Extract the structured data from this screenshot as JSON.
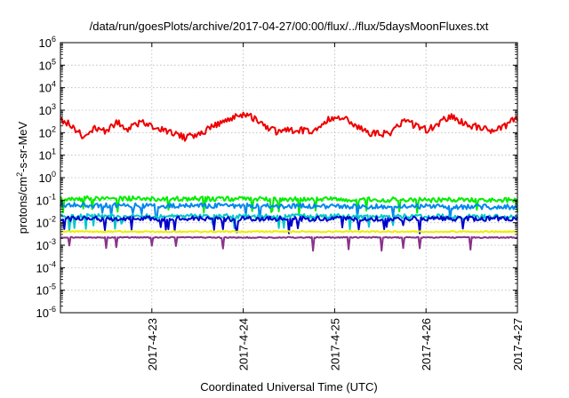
{
  "chart_data": {
    "type": "line",
    "title": "/data/run/goesPlots/archive/2017-04-27/00:00/flux/../flux/5daysMoonFluxes.txt",
    "xlabel": "Coordinated Universal Time (UTC)",
    "ylabel": "protons/cm²-s-sr-MeV",
    "ylabel_parts": {
      "pre": "protons/cm",
      "sup": "2",
      "post": "-s-sr-MeV"
    },
    "y_scale": "log",
    "ylim": [
      1e-06,
      1000000.0
    ],
    "y_ticks": [
      {
        "base": "10",
        "exp": "-6",
        "value": 1e-06
      },
      {
        "base": "10",
        "exp": "-5",
        "value": 1e-05
      },
      {
        "base": "10",
        "exp": "-4",
        "value": 0.0001
      },
      {
        "base": "10",
        "exp": "-3",
        "value": 0.001
      },
      {
        "base": "10",
        "exp": "-2",
        "value": 0.01
      },
      {
        "base": "10",
        "exp": "-1",
        "value": 0.1
      },
      {
        "base": "10",
        "exp": "0",
        "value": 1.0
      },
      {
        "base": "10",
        "exp": "1",
        "value": 10.0
      },
      {
        "base": "10",
        "exp": "2",
        "value": 100.0
      },
      {
        "base": "10",
        "exp": "3",
        "value": 1000.0
      },
      {
        "base": "10",
        "exp": "4",
        "value": 10000.0
      },
      {
        "base": "10",
        "exp": "5",
        "value": 100000.0
      },
      {
        "base": "10",
        "exp": "6",
        "value": 1000000.0
      }
    ],
    "xlim": [
      "2017-04-22T00:00",
      "2017-04-27T00:00"
    ],
    "x_ticks": [
      {
        "label": "2017-4-23",
        "value": "2017-04-23T00:00"
      },
      {
        "label": "2017-4-24",
        "value": "2017-04-24T00:00"
      },
      {
        "label": "2017-4-25",
        "value": "2017-04-25T00:00"
      },
      {
        "label": "2017-4-26",
        "value": "2017-04-26T00:00"
      },
      {
        "label": "2017-4-27",
        "value": "2017-04-27T00:00"
      }
    ],
    "grid": true,
    "series": [
      {
        "color": "#ee0000",
        "x": [
          "2017-04-22T00:00",
          "2017-04-22T03:00",
          "2017-04-22T06:00",
          "2017-04-22T09:00",
          "2017-04-22T12:00",
          "2017-04-22T15:00",
          "2017-04-22T18:00",
          "2017-04-22T21:00",
          "2017-04-23T00:00",
          "2017-04-23T03:00",
          "2017-04-23T06:00",
          "2017-04-23T09:00",
          "2017-04-23T12:00",
          "2017-04-23T15:00",
          "2017-04-23T18:00",
          "2017-04-23T21:00",
          "2017-04-24T00:00",
          "2017-04-24T03:00",
          "2017-04-24T06:00",
          "2017-04-24T09:00",
          "2017-04-24T12:00",
          "2017-04-24T15:00",
          "2017-04-24T18:00",
          "2017-04-24T21:00",
          "2017-04-25T00:00",
          "2017-04-25T03:00",
          "2017-04-25T06:00",
          "2017-04-25T09:00",
          "2017-04-25T12:00",
          "2017-04-25T15:00",
          "2017-04-25T18:00",
          "2017-04-25T21:00",
          "2017-04-26T00:00",
          "2017-04-26T03:00",
          "2017-04-26T06:00",
          "2017-04-26T09:00",
          "2017-04-26T12:00",
          "2017-04-26T15:00",
          "2017-04-26T18:00",
          "2017-04-26T21:00",
          "2017-04-27T00:00"
        ],
        "values": [
          400,
          210,
          60,
          160,
          110,
          300,
          140,
          300,
          180,
          140,
          80,
          60,
          80,
          150,
          250,
          400,
          650,
          420,
          180,
          110,
          120,
          140,
          90,
          250,
          550,
          400,
          180,
          100,
          90,
          110,
          350,
          220,
          130,
          240,
          520,
          350,
          200,
          150,
          130,
          220,
          450
        ]
      },
      {
        "color": "#00ee00",
        "x": [
          "2017-04-22T00:00",
          "2017-04-27T00:00"
        ],
        "values": [
          0.12,
          0.1
        ]
      },
      {
        "color": "#0088ee",
        "x": [
          "2017-04-22T00:00",
          "2017-04-27T00:00"
        ],
        "values": [
          0.06,
          0.05
        ]
      },
      {
        "color": "#00c8c8",
        "x": [
          "2017-04-22T00:00",
          "2017-04-27T00:00"
        ],
        "values": [
          0.02,
          0.018
        ]
      },
      {
        "color": "#0000cc",
        "x": [
          "2017-04-22T00:00",
          "2017-04-27T00:00"
        ],
        "values": [
          0.015,
          0.015
        ]
      },
      {
        "color": "#eeee00",
        "x": [
          "2017-04-22T00:00",
          "2017-04-27T00:00"
        ],
        "values": [
          0.004,
          0.004
        ]
      },
      {
        "color": "#883388",
        "x": [
          "2017-04-22T00:00",
          "2017-04-27T00:00"
        ],
        "values": [
          0.0022,
          0.0022
        ]
      }
    ]
  }
}
